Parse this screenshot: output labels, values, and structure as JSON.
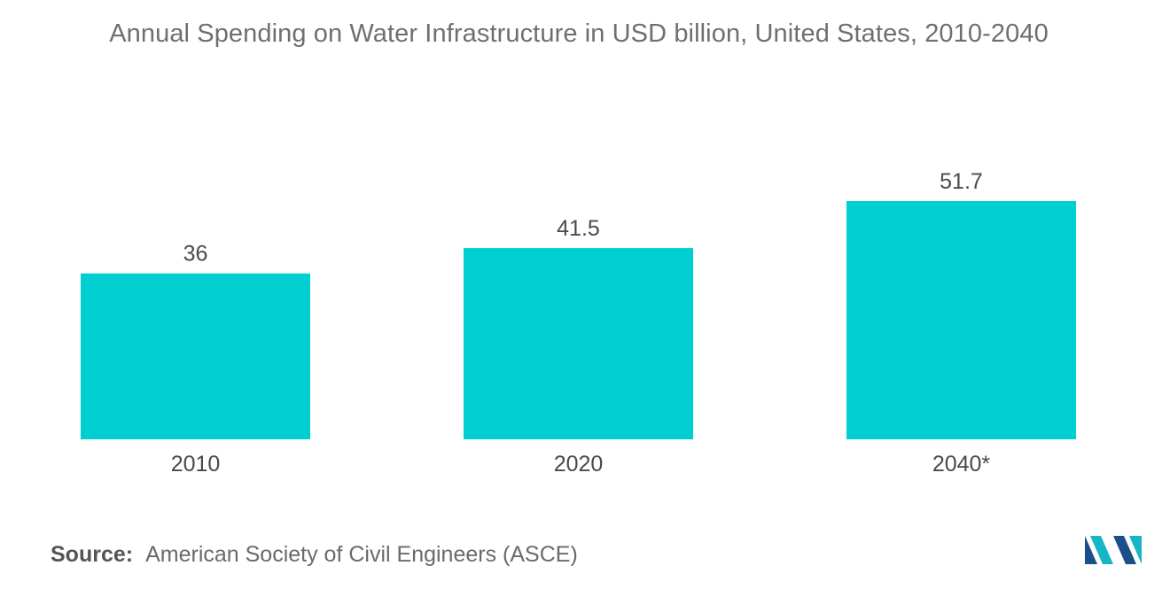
{
  "chart_data": {
    "type": "bar",
    "title": "Annual Spending on Water Infrastructure in USD billion, United States, 2010-2040",
    "categories": [
      "2010",
      "2020",
      "2040*"
    ],
    "values": [
      36,
      41.5,
      51.7
    ],
    "value_labels": [
      "36",
      "41.5",
      "51.7"
    ],
    "xlabel": "",
    "ylabel": "",
    "ylim": [
      0,
      51.7
    ],
    "grid": false,
    "legend": "none",
    "bar_color": "#00cfd1"
  },
  "source": {
    "label": "Source:",
    "text": "American Society of Civil Engineers (ASCE)"
  },
  "colors": {
    "logo_dark": "#1b4f8a",
    "logo_teal": "#17b6c7"
  }
}
